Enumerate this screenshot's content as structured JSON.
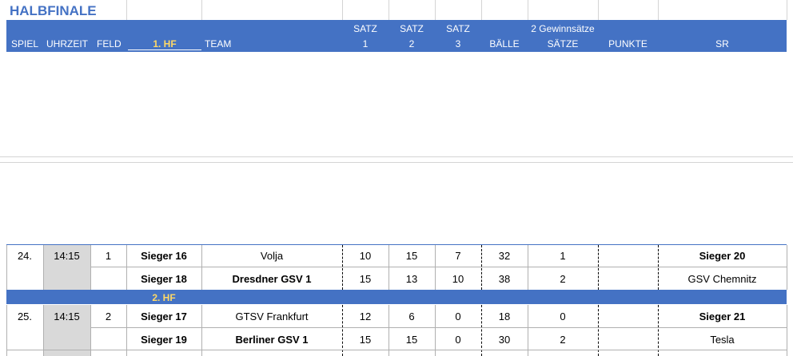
{
  "title": "HALBFINALE",
  "header": {
    "spiel": "SPIEL",
    "uhrzeit": "UHRZEIT",
    "feld": "FELD",
    "hf1": "1. HF",
    "team": "TEAM",
    "satz1_a": "SATZ",
    "satz1_b": "1",
    "satz2_a": "SATZ",
    "satz2_b": "2",
    "satz3_a": "SATZ",
    "satz3_b": "3",
    "baelle": "BÄLLE",
    "gewinn": "2 Gewinnsätze",
    "saetze": "SÄTZE",
    "punkte": "PUNKTE",
    "sr": "SR"
  },
  "hf2_label": "2. HF",
  "matches": [
    {
      "spiel": "24.",
      "uhrzeit": "14:15",
      "feld": "1",
      "rows": [
        {
          "slot": "Sieger 16",
          "team": "Volja",
          "s1": "10",
          "s2": "15",
          "s3": "7",
          "baelle": "32",
          "saetze": "1",
          "punkte": "",
          "sr": "Sieger 20"
        },
        {
          "slot": "Sieger 18",
          "team": "Dresdner GSV 1",
          "s1": "15",
          "s2": "13",
          "s3": "10",
          "baelle": "38",
          "saetze": "2",
          "punkte": "",
          "sr": "GSV Chemnitz"
        }
      ]
    },
    {
      "spiel": "25.",
      "uhrzeit": "14:15",
      "feld": "2",
      "rows": [
        {
          "slot": "Sieger 17",
          "team": "GTSV Frankfurt",
          "s1": "12",
          "s2": "6",
          "s3": "0",
          "baelle": "18",
          "saetze": "0",
          "punkte": "",
          "sr": "Sieger 21"
        },
        {
          "slot": "Sieger 19",
          "team": "Berliner GSV 1",
          "s1": "15",
          "s2": "15",
          "s3": "0",
          "baelle": "30",
          "saetze": "2",
          "punkte": "",
          "sr": "Tesla"
        }
      ]
    }
  ]
}
